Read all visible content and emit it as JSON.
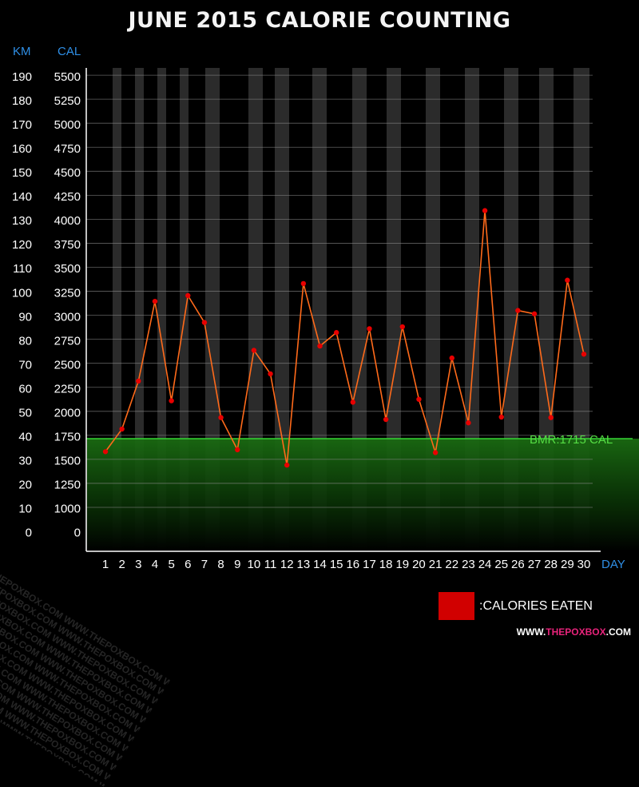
{
  "chart_data": {
    "type": "line",
    "title": "JUNE 2015 CALORIE COUNTING",
    "y_left_label": "KM",
    "y_right_label": "CAL",
    "xlabel": "DAY",
    "x": [
      1,
      2,
      3,
      4,
      5,
      6,
      7,
      8,
      9,
      10,
      11,
      12,
      13,
      14,
      15,
      16,
      17,
      18,
      19,
      20,
      21,
      22,
      23,
      24,
      25,
      26,
      27,
      28,
      29,
      30
    ],
    "series": [
      {
        "name": ":CALORIES EATEN",
        "color": "#ff6a1a",
        "marker_color": "#e80000",
        "values": [
          1580,
          1815,
          2315,
          3145,
          2110,
          3205,
          2925,
          1935,
          1600,
          2635,
          2390,
          1440,
          3330,
          2680,
          2820,
          2095,
          2860,
          1915,
          2880,
          2125,
          1570,
          2555,
          1880,
          4090,
          1940,
          3050,
          3015,
          1935,
          3365,
          2595
        ]
      }
    ],
    "cal_ticks": [
      "5500",
      "5250",
      "5000",
      "4750",
      "4500",
      "4250",
      "4000",
      "3750",
      "3500",
      "3250",
      "3000",
      "2750",
      "2500",
      "2250",
      "2000",
      "1750",
      "1500",
      "1250",
      "1000",
      "0"
    ],
    "km_ticks": [
      "190",
      "180",
      "170",
      "160",
      "150",
      "140",
      "130",
      "120",
      "110",
      "100",
      "90",
      "80",
      "70",
      "60",
      "50",
      "40",
      "30",
      "20",
      "10",
      "0"
    ],
    "bmr": {
      "value": 1715,
      "label": "BMR:1715 CAL",
      "color": "#33cc33"
    },
    "grid": true
  },
  "legend": {
    "label": ":CALORIES EATEN",
    "color": "#d10000"
  },
  "footer": {
    "prefix": "WWW.",
    "brand": "THEPOXBOX",
    "suffix": ".COM"
  },
  "watermark": "WWW.THEPOXBOX.COM"
}
